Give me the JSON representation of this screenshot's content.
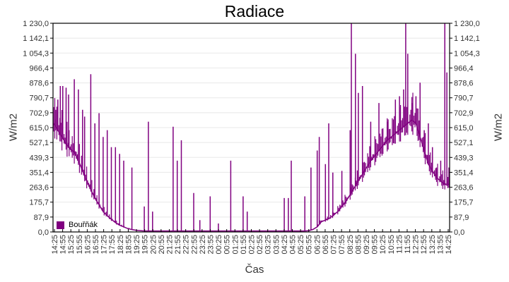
{
  "chart_data": {
    "type": "line",
    "title": "Radiace",
    "xlabel": "Čas",
    "ylabel": "W/m2",
    "ylim": [
      0,
      1230
    ],
    "y_ticks": [
      "0,0",
      "87,9",
      "175,7",
      "263,6",
      "351,4",
      "439,3",
      "527,1",
      "615,0",
      "702,9",
      "790,7",
      "878,6",
      "966,4",
      "1 054,3",
      "1 142,1",
      "1 230,0"
    ],
    "x_ticks": [
      "14:25",
      "14:55",
      "15:25",
      "15:55",
      "16:25",
      "16:55",
      "17:25",
      "17:55",
      "18:25",
      "18:55",
      "19:25",
      "19:55",
      "20:25",
      "20:55",
      "21:25",
      "21:55",
      "22:25",
      "22:55",
      "23:25",
      "23:55",
      "00:25",
      "00:55",
      "01:25",
      "01:55",
      "02:25",
      "02:55",
      "03:25",
      "03:55",
      "04:25",
      "04:55",
      "05:25",
      "05:55",
      "06:25",
      "06:55",
      "07:25",
      "07:55",
      "08:25",
      "08:55",
      "09:25",
      "09:55",
      "10:25",
      "10:55",
      "11:25",
      "11:55",
      "12:25",
      "12:55",
      "13:25",
      "13:55",
      "14:25"
    ],
    "grid": true,
    "legend_position": "bottom-left inside",
    "series": [
      {
        "name": "Bouřňák",
        "color": "#800080",
        "baseline_points": [
          [
            0,
            640
          ],
          [
            1,
            600
          ],
          [
            2,
            560
          ],
          [
            3,
            520
          ],
          [
            4,
            490
          ],
          [
            5,
            470
          ],
          [
            6,
            420
          ],
          [
            7,
            360
          ],
          [
            8,
            300
          ],
          [
            9,
            250
          ],
          [
            10,
            200
          ],
          [
            11,
            160
          ],
          [
            12,
            120
          ],
          [
            13,
            95
          ],
          [
            14,
            75
          ],
          [
            15,
            55
          ],
          [
            16,
            40
          ],
          [
            17,
            30
          ],
          [
            18,
            20
          ],
          [
            19,
            14
          ],
          [
            20,
            10
          ],
          [
            21,
            8
          ],
          [
            22,
            6
          ],
          [
            23,
            6
          ],
          [
            24,
            6
          ],
          [
            25,
            6
          ],
          [
            26,
            6
          ],
          [
            27,
            6
          ],
          [
            28,
            6
          ],
          [
            29,
            6
          ],
          [
            30,
            6
          ],
          [
            31,
            6
          ],
          [
            32,
            6
          ],
          [
            33,
            6
          ],
          [
            34,
            6
          ],
          [
            35,
            6
          ],
          [
            36,
            6
          ],
          [
            37,
            6
          ],
          [
            38,
            6
          ],
          [
            39,
            6
          ],
          [
            40,
            6
          ],
          [
            41,
            6
          ],
          [
            42,
            6
          ],
          [
            43,
            6
          ],
          [
            44,
            6
          ],
          [
            45,
            6
          ],
          [
            46,
            6
          ],
          [
            47,
            6
          ],
          [
            48,
            6
          ],
          [
            49,
            6
          ],
          [
            50,
            6
          ],
          [
            51,
            6
          ],
          [
            52,
            6
          ],
          [
            53,
            6
          ],
          [
            54,
            6
          ],
          [
            55,
            6
          ],
          [
            56,
            6
          ],
          [
            57,
            6
          ],
          [
            58,
            6
          ],
          [
            59,
            6
          ],
          [
            60,
            6
          ],
          [
            61,
            6
          ],
          [
            62,
            8
          ],
          [
            63,
            15
          ],
          [
            64,
            30
          ],
          [
            65,
            60
          ],
          [
            66,
            70
          ],
          [
            67,
            80
          ],
          [
            68,
            100
          ],
          [
            69,
            120
          ],
          [
            70,
            150
          ],
          [
            71,
            180
          ],
          [
            72,
            220
          ],
          [
            73,
            260
          ],
          [
            74,
            300
          ],
          [
            75,
            340
          ],
          [
            76,
            380
          ],
          [
            77,
            420
          ],
          [
            78,
            450
          ],
          [
            79,
            480
          ],
          [
            80,
            510
          ],
          [
            81,
            540
          ],
          [
            82,
            560
          ],
          [
            83,
            580
          ],
          [
            84,
            600
          ],
          [
            85,
            620
          ],
          [
            86,
            640
          ],
          [
            87,
            660
          ],
          [
            88,
            640
          ],
          [
            89,
            560
          ],
          [
            90,
            480
          ],
          [
            91,
            400
          ],
          [
            92,
            360
          ],
          [
            93,
            320
          ],
          [
            94,
            300
          ],
          [
            95,
            280
          ],
          [
            96,
            280
          ]
        ],
        "spikes": [
          [
            0.5,
            720
          ],
          [
            1,
            780
          ],
          [
            1.6,
            860
          ],
          [
            2.2,
            860
          ],
          [
            3,
            850
          ],
          [
            3.6,
            810
          ],
          [
            5,
            900
          ],
          [
            6,
            840
          ],
          [
            7,
            720
          ],
          [
            7.5,
            680
          ],
          [
            9,
            930
          ],
          [
            10,
            640
          ],
          [
            11,
            700
          ],
          [
            12,
            560
          ],
          [
            13,
            600
          ],
          [
            14,
            500
          ],
          [
            15,
            500
          ],
          [
            16,
            460
          ],
          [
            17,
            420
          ],
          [
            19,
            380
          ],
          [
            22,
            150
          ],
          [
            23,
            650
          ],
          [
            24,
            120
          ],
          [
            29,
            620
          ],
          [
            30,
            420
          ],
          [
            31,
            540
          ],
          [
            34,
            230
          ],
          [
            35.5,
            70
          ],
          [
            38,
            210
          ],
          [
            40,
            50
          ],
          [
            43,
            420
          ],
          [
            46,
            210
          ],
          [
            47,
            120
          ],
          [
            56,
            200
          ],
          [
            57,
            200
          ],
          [
            57.7,
            420
          ],
          [
            61,
            210
          ],
          [
            62.5,
            380
          ],
          [
            64,
            480
          ],
          [
            64.5,
            560
          ],
          [
            66,
            400
          ],
          [
            66.8,
            640
          ],
          [
            67.8,
            350
          ],
          [
            70,
            360
          ],
          [
            72,
            600
          ],
          [
            72.3,
            1230
          ],
          [
            73.3,
            1050
          ],
          [
            74,
            820
          ],
          [
            75,
            860
          ],
          [
            77,
            650
          ],
          [
            79,
            760
          ],
          [
            81,
            650
          ],
          [
            82,
            550
          ],
          [
            83,
            780
          ],
          [
            84,
            800
          ],
          [
            85,
            840
          ],
          [
            85.5,
            1230
          ],
          [
            86,
            1050
          ],
          [
            87,
            760
          ],
          [
            88,
            800
          ],
          [
            89,
            880
          ],
          [
            90,
            600
          ],
          [
            91,
            640
          ],
          [
            92,
            500
          ],
          [
            93,
            380
          ],
          [
            94,
            420
          ],
          [
            95,
            1230
          ],
          [
            95.5,
            940
          ],
          [
            96,
            380
          ]
        ]
      }
    ]
  },
  "legend": {
    "label": "Bouřňák",
    "color": "#800080"
  }
}
